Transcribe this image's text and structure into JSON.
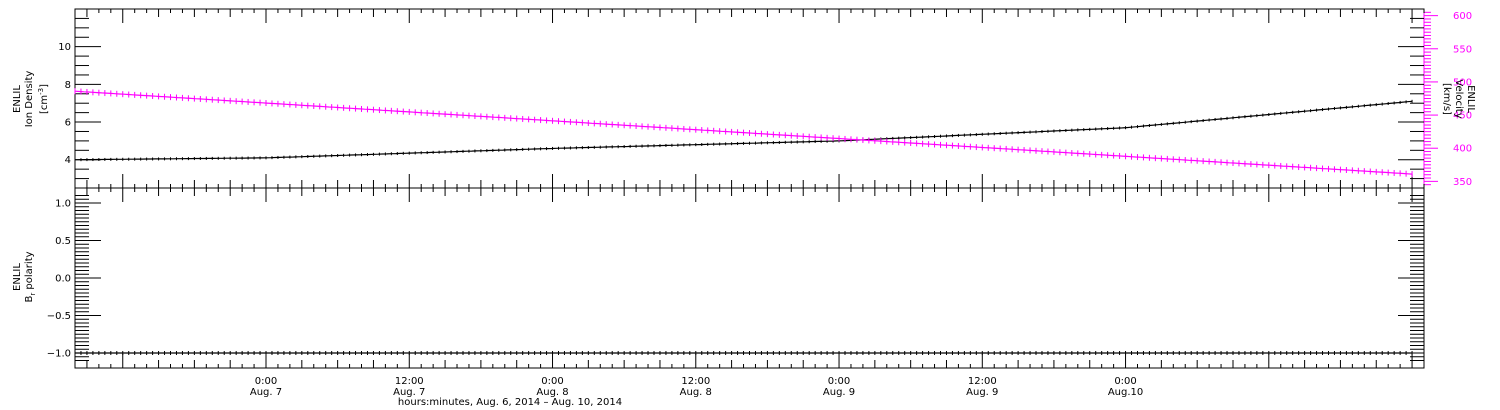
{
  "chart_data": [
    {
      "type": "line",
      "panel": "top",
      "ylabel": {
        "line1": "ENLIL",
        "line2": "Ion Density",
        "line3": "[cm",
        "sup": "-3",
        "close": "]"
      },
      "ylabel_right": {
        "line1": "ENLIL",
        "line2": "Velocity",
        "line3": "[km/s]"
      },
      "ylim": [
        2.5,
        12
      ],
      "ylim_right": [
        340,
        610
      ],
      "yticks": [
        4,
        6,
        8,
        10
      ],
      "yticks_right": [
        350,
        400,
        450,
        500,
        550,
        600
      ],
      "colors": {
        "density": "#000000",
        "velocity": "#ff00ff"
      },
      "series": [
        {
          "name": "Ion Density",
          "axis": "left",
          "x": [
            -16,
            0,
            24,
            48,
            72,
            96
          ],
          "values": [
            4.0,
            4.1,
            4.6,
            5.0,
            5.7,
            7.1
          ]
        },
        {
          "name": "Velocity",
          "axis": "right",
          "x": [
            -16,
            96
          ],
          "values": [
            486,
            361
          ]
        }
      ]
    },
    {
      "type": "line",
      "panel": "bottom",
      "ylabel": {
        "line1": "ENLIL",
        "line2": "B",
        "sub": "r",
        "line3": " polarity"
      },
      "ylim": [
        -1.2,
        1.2
      ],
      "yticks": [
        1.0,
        0.5,
        0.0,
        -0.5,
        -1.0
      ],
      "ytick_labels": [
        "1.0",
        "0.5",
        "0.0",
        "−0.5",
        "−1.0"
      ],
      "series": [
        {
          "name": "Br polarity",
          "x": [
            -16,
            96
          ],
          "values": [
            -1.0,
            -1.0
          ]
        }
      ]
    }
  ],
  "xaxis": {
    "xlim": [
      -16,
      97
    ],
    "tick_labels": [
      {
        "x": 0,
        "time": "0:00",
        "date": "Aug. 7"
      },
      {
        "x": 12,
        "time": "12:00",
        "date": "Aug. 7"
      },
      {
        "x": 24,
        "time": "0:00",
        "date": "Aug. 8"
      },
      {
        "x": 36,
        "time": "12:00",
        "date": "Aug. 8"
      },
      {
        "x": 48,
        "time": "0:00",
        "date": "Aug. 9"
      },
      {
        "x": 60,
        "time": "12:00",
        "date": "Aug. 9"
      },
      {
        "x": 72,
        "time": "0:00",
        "date": "Aug.10"
      }
    ],
    "title": "hours:minutes, Aug.  6, 2014 – Aug. 10, 2014"
  }
}
